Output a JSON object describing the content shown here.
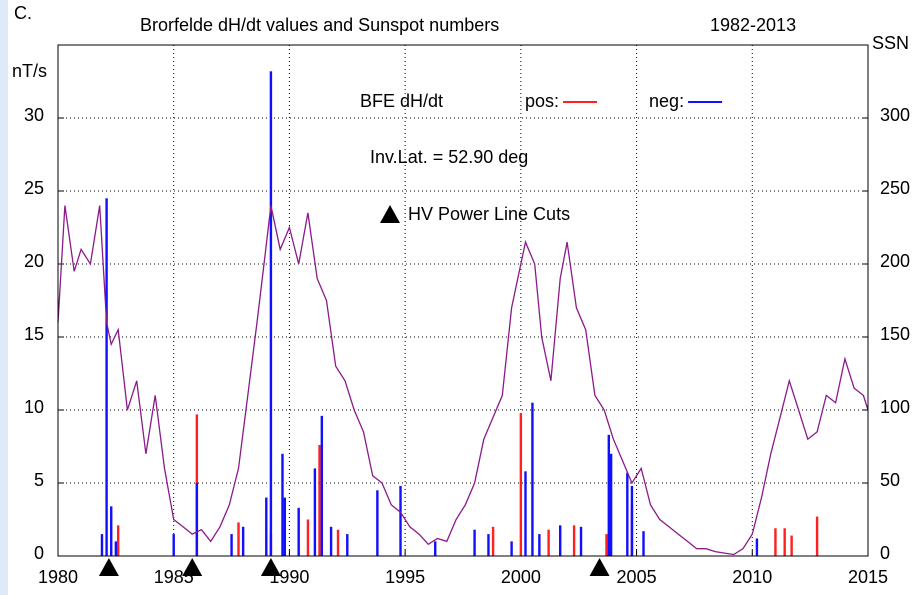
{
  "chart_data": {
    "type": "bar",
    "panel_label": "C.",
    "title": "Brorfelde dH/dt values and Sunspot numbers",
    "subtitle": "1982-2013",
    "ylabel": "nT/s",
    "y2label": "SSN",
    "legend_title": "BFE dH/dt",
    "annotation": "Inv.Lat. = 52.90 deg",
    "event_label": "HV Power Line Cuts",
    "events_x": [
      1982.2,
      1985.8,
      1989.2,
      2003.4
    ],
    "xlim": [
      1980,
      2015
    ],
    "xticks": [
      1980,
      1985,
      1990,
      1995,
      2000,
      2005,
      2010,
      2015
    ],
    "ylim": [
      0,
      35
    ],
    "yticks": [
      0,
      5,
      10,
      15,
      20,
      25,
      30
    ],
    "y2lim": [
      0,
      350
    ],
    "y2ticks": [
      0,
      50,
      100,
      150,
      200,
      250,
      300
    ],
    "grid": true,
    "series": [
      {
        "name": "pos:",
        "type": "bar",
        "color": "#ff2020",
        "x": [
          1982.6,
          1986.0,
          1987.8,
          1989.2,
          1990.8,
          1991.3,
          1992.1,
          1998.8,
          2000.0,
          2001.2,
          2002.3,
          2003.7,
          2004.8,
          2011.0,
          2011.4,
          2011.7,
          2012.8
        ],
        "values": [
          2.1,
          9.7,
          2.3,
          1.5,
          2.5,
          7.6,
          1.8,
          2.0,
          9.8,
          1.8,
          2.1,
          1.5,
          3.5,
          1.9,
          1.9,
          1.4,
          2.7
        ]
      },
      {
        "name": "neg:",
        "type": "bar",
        "color": "#1010ff",
        "x": [
          1981.9,
          1982.1,
          1982.3,
          1982.5,
          1985.0,
          1986.0,
          1987.5,
          1988.0,
          1989.0,
          1989.2,
          1989.7,
          1989.8,
          1990.4,
          1991.1,
          1991.4,
          1991.8,
          1992.5,
          1993.8,
          1994.8,
          1996.3,
          1998.0,
          1998.6,
          1999.6,
          2000.2,
          2000.5,
          2000.8,
          2001.7,
          2002.6,
          2003.8,
          2003.9,
          2004.6,
          2004.8,
          2005.3,
          2010.2
        ],
        "values": [
          1.5,
          24.5,
          3.4,
          1.0,
          1.5,
          5.0,
          1.5,
          2.0,
          4.0,
          33.2,
          7.0,
          4.0,
          3.3,
          6.0,
          9.6,
          2.0,
          1.5,
          4.5,
          4.8,
          1.0,
          1.8,
          1.5,
          1.0,
          5.8,
          10.5,
          1.5,
          2.1,
          2.0,
          8.3,
          7.0,
          5.7,
          4.8,
          1.7,
          1.2
        ]
      },
      {
        "name": "SSN",
        "type": "line",
        "axis": "y2",
        "color": "#8b1a8b",
        "x": [
          1980.0,
          1980.3,
          1980.7,
          1981.0,
          1981.4,
          1981.8,
          1982.1,
          1982.3,
          1982.6,
          1983.0,
          1983.4,
          1983.8,
          1984.2,
          1984.6,
          1985.0,
          1985.4,
          1985.8,
          1986.2,
          1986.6,
          1987.0,
          1987.4,
          1987.8,
          1988.2,
          1988.6,
          1988.9,
          1989.2,
          1989.6,
          1990.0,
          1990.4,
          1990.8,
          1991.2,
          1991.6,
          1992.0,
          1992.4,
          1992.8,
          1993.2,
          1993.6,
          1994.0,
          1994.4,
          1994.8,
          1995.2,
          1995.6,
          1996.0,
          1996.4,
          1996.8,
          1997.2,
          1997.6,
          1998.0,
          1998.4,
          1998.8,
          1999.2,
          1999.6,
          1999.8,
          2000.2,
          2000.6,
          2000.9,
          2001.3,
          2001.7,
          2002.0,
          2002.4,
          2002.8,
          2003.2,
          2003.6,
          2004.0,
          2004.4,
          2004.8,
          2005.2,
          2005.6,
          2006.0,
          2006.4,
          2006.8,
          2007.2,
          2007.6,
          2008.0,
          2008.4,
          2008.8,
          2009.2,
          2009.6,
          2010.0,
          2010.4,
          2010.8,
          2011.2,
          2011.6,
          2012.0,
          2012.4,
          2012.8,
          2013.2,
          2013.6,
          2014.0,
          2014.4,
          2014.8,
          2015.0
        ],
        "values": [
          160,
          240,
          195,
          210,
          200,
          240,
          160,
          145,
          155,
          100,
          120,
          70,
          110,
          60,
          25,
          20,
          15,
          18,
          10,
          20,
          35,
          60,
          110,
          160,
          200,
          240,
          210,
          225,
          200,
          235,
          190,
          175,
          130,
          120,
          100,
          85,
          55,
          50,
          35,
          30,
          20,
          15,
          8,
          12,
          10,
          25,
          35,
          50,
          80,
          95,
          110,
          170,
          185,
          215,
          200,
          150,
          120,
          190,
          215,
          170,
          155,
          110,
          100,
          80,
          65,
          50,
          60,
          35,
          25,
          20,
          15,
          10,
          5,
          5,
          3,
          2,
          1,
          5,
          15,
          40,
          70,
          95,
          120,
          100,
          80,
          85,
          110,
          105,
          135,
          115,
          110,
          100
        ]
      }
    ]
  }
}
